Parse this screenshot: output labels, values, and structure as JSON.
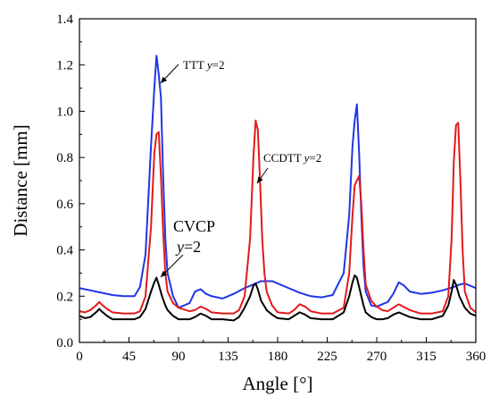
{
  "chart_data": {
    "type": "line",
    "title": "",
    "xlabel": "Angle [°]",
    "ylabel": "Distance [mm]",
    "xlim": [
      0,
      360
    ],
    "ylim": [
      0.0,
      1.4
    ],
    "x_ticks": [
      0,
      45,
      90,
      135,
      180,
      225,
      270,
      315,
      360
    ],
    "y_ticks": [
      0.0,
      0.2,
      0.4,
      0.6,
      0.8,
      1.0,
      1.2,
      1.4
    ],
    "x_tick_labels": [
      "0",
      "45",
      "90",
      "135",
      "180",
      "225",
      "270",
      "315",
      "360"
    ],
    "y_tick_labels": [
      "0.0",
      "0.2",
      "0.4",
      "0.6",
      "0.8",
      "1.0",
      "1.2",
      "1.4"
    ],
    "grid": false,
    "legend": "none",
    "annotations": [
      {
        "target_series": "TTT",
        "text": "TTT ",
        "italic_text": "y",
        "suffix": "=2"
      },
      {
        "target_series": "CCDTT",
        "text": "CCDTT ",
        "italic_text": "y",
        "suffix": "=2"
      },
      {
        "target_series": "CVCP",
        "line1": "CVCP",
        "line2_italic": "y",
        "line2_suffix": "=2"
      }
    ],
    "series": [
      {
        "id": "TTT",
        "color": "#1f35e6",
        "x": [
          0,
          10,
          20,
          30,
          40,
          50,
          55,
          60,
          65,
          68,
          70,
          72,
          74,
          76,
          78,
          80,
          85,
          90,
          95,
          100,
          105,
          110,
          115,
          120,
          130,
          140,
          150,
          160,
          165,
          170,
          175,
          180,
          190,
          200,
          210,
          220,
          230,
          240,
          245,
          248,
          250,
          252,
          254,
          256,
          258,
          260,
          265,
          270,
          275,
          280,
          285,
          290,
          295,
          300,
          310,
          320,
          330,
          340,
          345,
          350,
          360
        ],
        "values": [
          0.235,
          0.225,
          0.215,
          0.205,
          0.2,
          0.2,
          0.24,
          0.38,
          0.85,
          1.1,
          1.24,
          1.16,
          1.06,
          0.72,
          0.45,
          0.3,
          0.2,
          0.15,
          0.16,
          0.17,
          0.22,
          0.23,
          0.21,
          0.2,
          0.19,
          0.21,
          0.235,
          0.255,
          0.265,
          0.265,
          0.265,
          0.255,
          0.235,
          0.215,
          0.2,
          0.195,
          0.205,
          0.3,
          0.55,
          0.85,
          0.96,
          1.03,
          0.82,
          0.55,
          0.33,
          0.22,
          0.16,
          0.155,
          0.165,
          0.175,
          0.21,
          0.26,
          0.245,
          0.22,
          0.21,
          0.215,
          0.225,
          0.24,
          0.25,
          0.255,
          0.235
        ]
      },
      {
        "id": "CCDTT",
        "color": "#e21a1a",
        "x": [
          0,
          5,
          10,
          15,
          18,
          20,
          25,
          30,
          40,
          50,
          55,
          60,
          65,
          68,
          70,
          72,
          74,
          76,
          78,
          80,
          85,
          90,
          100,
          105,
          110,
          115,
          120,
          130,
          140,
          145,
          150,
          155,
          158,
          160,
          162,
          164,
          166,
          168,
          170,
          175,
          180,
          190,
          195,
          200,
          205,
          210,
          220,
          230,
          240,
          245,
          248,
          250,
          252,
          254,
          256,
          258,
          260,
          265,
          270,
          275,
          280,
          285,
          290,
          300,
          310,
          320,
          330,
          335,
          338,
          340,
          342,
          344,
          346,
          348,
          350,
          355,
          360
        ],
        "values": [
          0.135,
          0.13,
          0.14,
          0.16,
          0.175,
          0.165,
          0.145,
          0.13,
          0.125,
          0.125,
          0.135,
          0.2,
          0.5,
          0.82,
          0.9,
          0.91,
          0.72,
          0.48,
          0.3,
          0.22,
          0.17,
          0.15,
          0.135,
          0.14,
          0.155,
          0.145,
          0.13,
          0.125,
          0.125,
          0.14,
          0.2,
          0.45,
          0.8,
          0.96,
          0.92,
          0.7,
          0.45,
          0.3,
          0.22,
          0.16,
          0.13,
          0.125,
          0.14,
          0.165,
          0.155,
          0.135,
          0.125,
          0.125,
          0.15,
          0.3,
          0.55,
          0.68,
          0.7,
          0.72,
          0.6,
          0.4,
          0.25,
          0.18,
          0.155,
          0.14,
          0.135,
          0.15,
          0.165,
          0.14,
          0.125,
          0.125,
          0.135,
          0.2,
          0.45,
          0.78,
          0.94,
          0.95,
          0.7,
          0.4,
          0.22,
          0.15,
          0.13
        ]
      },
      {
        "id": "CVCP",
        "color": "#000000",
        "x": [
          0,
          5,
          10,
          15,
          18,
          20,
          25,
          30,
          40,
          50,
          55,
          60,
          65,
          68,
          70,
          72,
          75,
          78,
          80,
          85,
          90,
          100,
          105,
          110,
          115,
          120,
          130,
          140,
          145,
          150,
          155,
          158,
          160,
          162,
          165,
          170,
          175,
          180,
          190,
          195,
          200,
          205,
          210,
          220,
          230,
          240,
          245,
          248,
          250,
          252,
          255,
          258,
          260,
          265,
          270,
          275,
          280,
          285,
          290,
          300,
          310,
          320,
          330,
          335,
          338,
          340,
          342,
          345,
          350,
          355,
          360
        ],
        "values": [
          0.115,
          0.105,
          0.11,
          0.13,
          0.145,
          0.135,
          0.115,
          0.1,
          0.1,
          0.1,
          0.11,
          0.145,
          0.22,
          0.26,
          0.28,
          0.25,
          0.2,
          0.16,
          0.14,
          0.115,
          0.1,
          0.1,
          0.11,
          0.125,
          0.115,
          0.1,
          0.1,
          0.095,
          0.11,
          0.15,
          0.2,
          0.245,
          0.255,
          0.23,
          0.18,
          0.14,
          0.12,
          0.105,
          0.1,
          0.115,
          0.13,
          0.12,
          0.105,
          0.1,
          0.1,
          0.13,
          0.2,
          0.26,
          0.29,
          0.28,
          0.22,
          0.16,
          0.13,
          0.11,
          0.1,
          0.1,
          0.105,
          0.12,
          0.13,
          0.11,
          0.1,
          0.1,
          0.115,
          0.16,
          0.22,
          0.27,
          0.25,
          0.2,
          0.15,
          0.125,
          0.115
        ]
      }
    ]
  }
}
